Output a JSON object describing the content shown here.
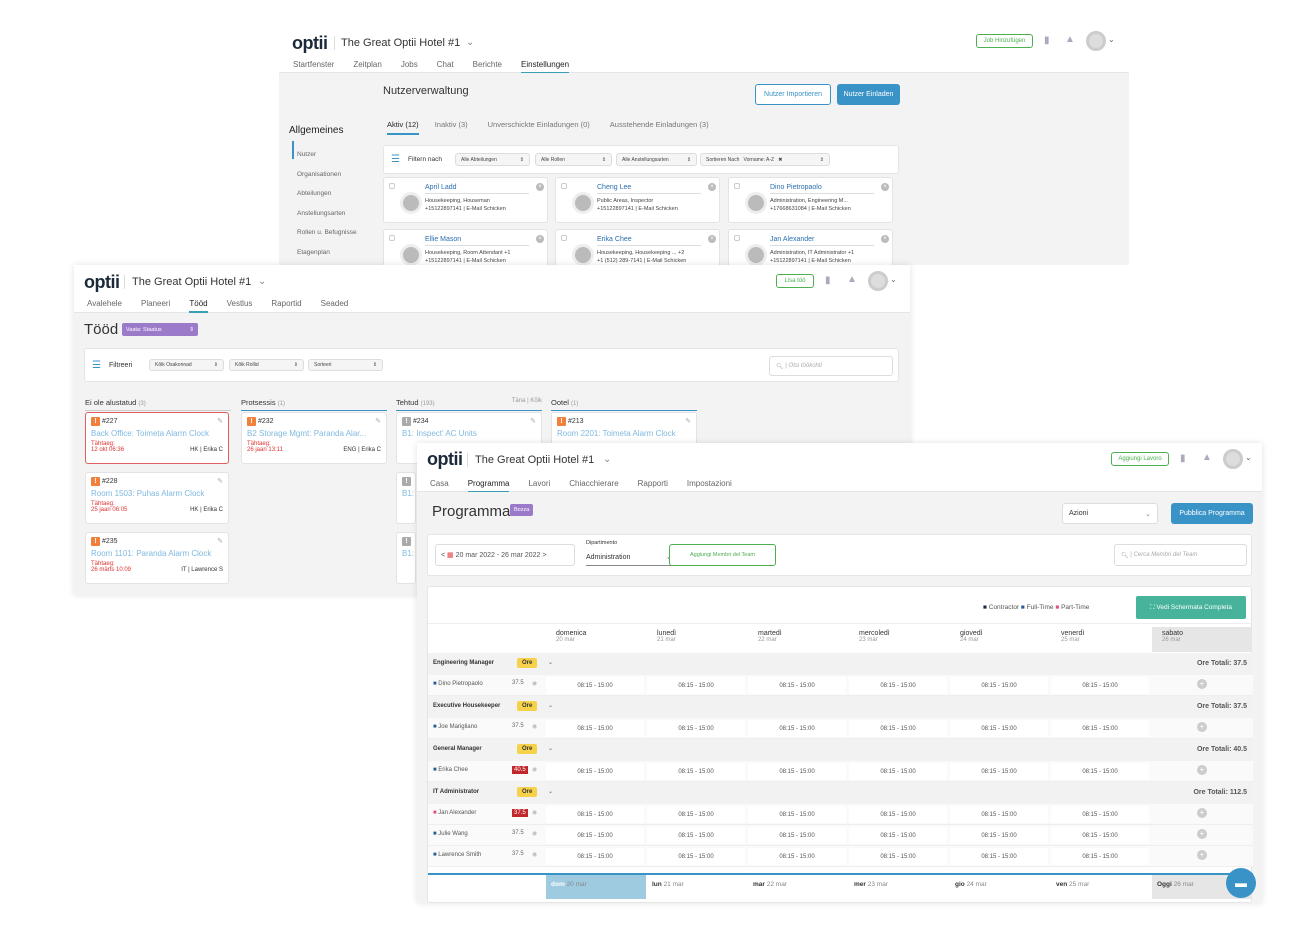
{
  "w1": {
    "logo": "optii",
    "hotel": "The Great Optii Hotel #1",
    "add_job": "Job Hinzufügen",
    "nav": [
      "Startfenster",
      "Zeitplan",
      "Jobs",
      "Chat",
      "Berichte",
      "Einstellungen"
    ],
    "page_title": "Nutzerverwaltung",
    "import_btn": "Nutzer Importieren",
    "invite_btn": "Nutzer Einladen",
    "side_heading": "Allgemeines",
    "side_items": [
      "Nutzer",
      "Organisationen",
      "Abteilungen",
      "Anstellungsarten",
      "Rollen u. Befugnisse",
      "Etagenplan"
    ],
    "tabs": [
      "Aktiv (12)",
      "Inaktiv (3)",
      "Unverschickte Einladungen (0)",
      "Ausstehende Einladungen (3)"
    ],
    "filter_label": "Filtern nach",
    "filters": [
      "Alle Abteilungen",
      "Alle Rollen",
      "Alle Anstellungsarten"
    ],
    "sort_label": "Sortieren Nach",
    "sort_value": "Vorname: A-Z",
    "users": [
      {
        "name": "April Ladd",
        "role": "Housekeeping, Houseman",
        "phone": "+15122897141 | E-Mail Schicken"
      },
      {
        "name": "Cheng Lee",
        "role": "Public Areas, Inspector",
        "phone": "+15122897141 | E-Mail Schicken"
      },
      {
        "name": "Dino Pietropaolo",
        "role": "Administration, Engineering M...",
        "phone": "+17668631084 | E-Mail Schicken"
      },
      {
        "name": "Ellie Mason",
        "role": "Housekeeping, Room Attendant +1",
        "phone": "+15122897141 | E-Mail Schicken"
      },
      {
        "name": "Erika Chee",
        "role": "Housekeeping, Housekeeping ... +2",
        "phone": "+1 (512) 289-7141 | E-Mail Schicken"
      },
      {
        "name": "Jan Alexander",
        "role": "Administration, IT Administrator +1",
        "phone": "+15122897141 | E-Mail Schicken"
      }
    ]
  },
  "w2": {
    "logo": "optii",
    "hotel": "The Great Optii Hotel #1",
    "add_job": "Lisa töö",
    "nav": [
      "Avalehele",
      "Planeeri",
      "Tööd",
      "Vestlus",
      "Raportid",
      "Seaded"
    ],
    "page_title": "Tööd",
    "view_select": "Vaata: Staatus",
    "filter_label": "Filtreeri",
    "filters": [
      "Kõik Osakonnad",
      "Kõik Rollid",
      "Sorteeri"
    ],
    "search_placeholder": "Otsi töökohti",
    "columns": [
      {
        "title": "Ei ole alustatud",
        "count": "(3)"
      },
      {
        "title": "Protsessis",
        "count": "(1)"
      },
      {
        "title": "Tehtud",
        "count": "(193)",
        "extra": "Täna | Kõik"
      },
      {
        "title": "Ootel",
        "count": "(1)"
      }
    ],
    "cards_col1": [
      {
        "id": "#227",
        "title": "Back Office: Toimeta Alarm Clock",
        "due_label": "Tähtaeg:",
        "due": "12 okt 06:36",
        "meta": "HK | Erika C"
      },
      {
        "id": "#228",
        "title": "Room 1503: Puhas Alarm Clock",
        "due_label": "Tähtaeg:",
        "due": "25 jaan 06:05",
        "meta": "HK | Erika C"
      },
      {
        "id": "#235",
        "title": "Room 1101: Paranda Alarm Clock",
        "due_label": "Tähtaeg:",
        "due": "26 märts 10:09",
        "meta": "IT | Lawrence S"
      }
    ],
    "card_col2": {
      "id": "#232",
      "title": "B2 Storage Mgmt: Paranda Alar...",
      "due_label": "Tähtaeg:",
      "due": "26 jaan 13:11",
      "meta": "ENG | Erika C"
    },
    "card_col3": {
      "id": "#234",
      "title": "B1: Inspect' AC Units"
    },
    "card_col3_more": [
      "B1:",
      "B1:"
    ],
    "card_col4": {
      "id": "#213",
      "title": "Room 2201: Toimeta Alarm Clock"
    }
  },
  "w3": {
    "logo": "optii",
    "hotel": "The Great Optii Hotel #1",
    "add_job": "Aggiungi Lavoro",
    "nav": [
      "Casa",
      "Programma",
      "Lavori",
      "Chiacchierare",
      "Rapporti",
      "Impostazioni"
    ],
    "page_title": "Programma",
    "draft_badge": "Bozza",
    "actions_label": "Azioni",
    "publish_btn": "Pubblica Programma",
    "date_range": "20 mar 2022 - 26 mar 2022",
    "dept_label": "Dipartimento",
    "dept_value": "Administration",
    "add_team_btn": "Aggiungi Membri del Team",
    "search_placeholder": "Cerca Membri del Team",
    "legend": [
      "Contractor",
      "Full-Time",
      "Part-Time"
    ],
    "fullscreen_btn": "Vedi Schermata Completa",
    "days": [
      {
        "name": "domenica",
        "date": "20 mar"
      },
      {
        "name": "lunedì",
        "date": "21 mar"
      },
      {
        "name": "martedì",
        "date": "22 mar"
      },
      {
        "name": "mercoledì",
        "date": "23 mar"
      },
      {
        "name": "giovedì",
        "date": "24 mar"
      },
      {
        "name": "venerdì",
        "date": "25 mar"
      },
      {
        "name": "sabato",
        "date": "26 mar"
      }
    ],
    "ore_label": "Ore",
    "groups": [
      {
        "role": "Engineering Manager",
        "total": "Ore Totali: 37.5",
        "people": [
          {
            "name": "Dino Pietropaolo",
            "hours": "37.5",
            "over": false,
            "type": "full"
          }
        ]
      },
      {
        "role": "Executive Housekeeper",
        "total": "Ore Totali: 37.5",
        "people": [
          {
            "name": "Joe Marigliano",
            "hours": "37.5",
            "over": false,
            "type": "full"
          }
        ]
      },
      {
        "role": "General Manager",
        "total": "Ore Totali: 40.5",
        "people": [
          {
            "name": "Erika Chee",
            "hours": "40.5",
            "over": true,
            "type": "full"
          }
        ]
      },
      {
        "role": "IT Administrator",
        "total": "Ore Totali: 112.5",
        "people": [
          {
            "name": "Jan Alexander",
            "hours": "37.5",
            "over": true,
            "type": "part"
          },
          {
            "name": "Julie Wang",
            "hours": "37.5",
            "over": false,
            "type": "full"
          },
          {
            "name": "Lawrence Smith",
            "hours": "37.5",
            "over": false,
            "type": "full"
          }
        ]
      }
    ],
    "shift": "08:15 - 15:00",
    "footer_days": [
      {
        "b": "dom",
        "d": "20 mar"
      },
      {
        "b": "lun",
        "d": "21 mar"
      },
      {
        "b": "mar",
        "d": "22 mar"
      },
      {
        "b": "mer",
        "d": "23 mar"
      },
      {
        "b": "gio",
        "d": "24 mar"
      },
      {
        "b": "ven",
        "d": "25 mar"
      },
      {
        "b": "Oggi",
        "d": "26 mar"
      }
    ],
    "colors": {
      "accent": "#3a93c7",
      "contractor": "#1b2a3a",
      "fulltime": "#2a5a9a",
      "parttime": "#e0507a",
      "over": "#c0282d",
      "ore": "#f5d24a",
      "fullscreen": "#47b39a"
    }
  }
}
